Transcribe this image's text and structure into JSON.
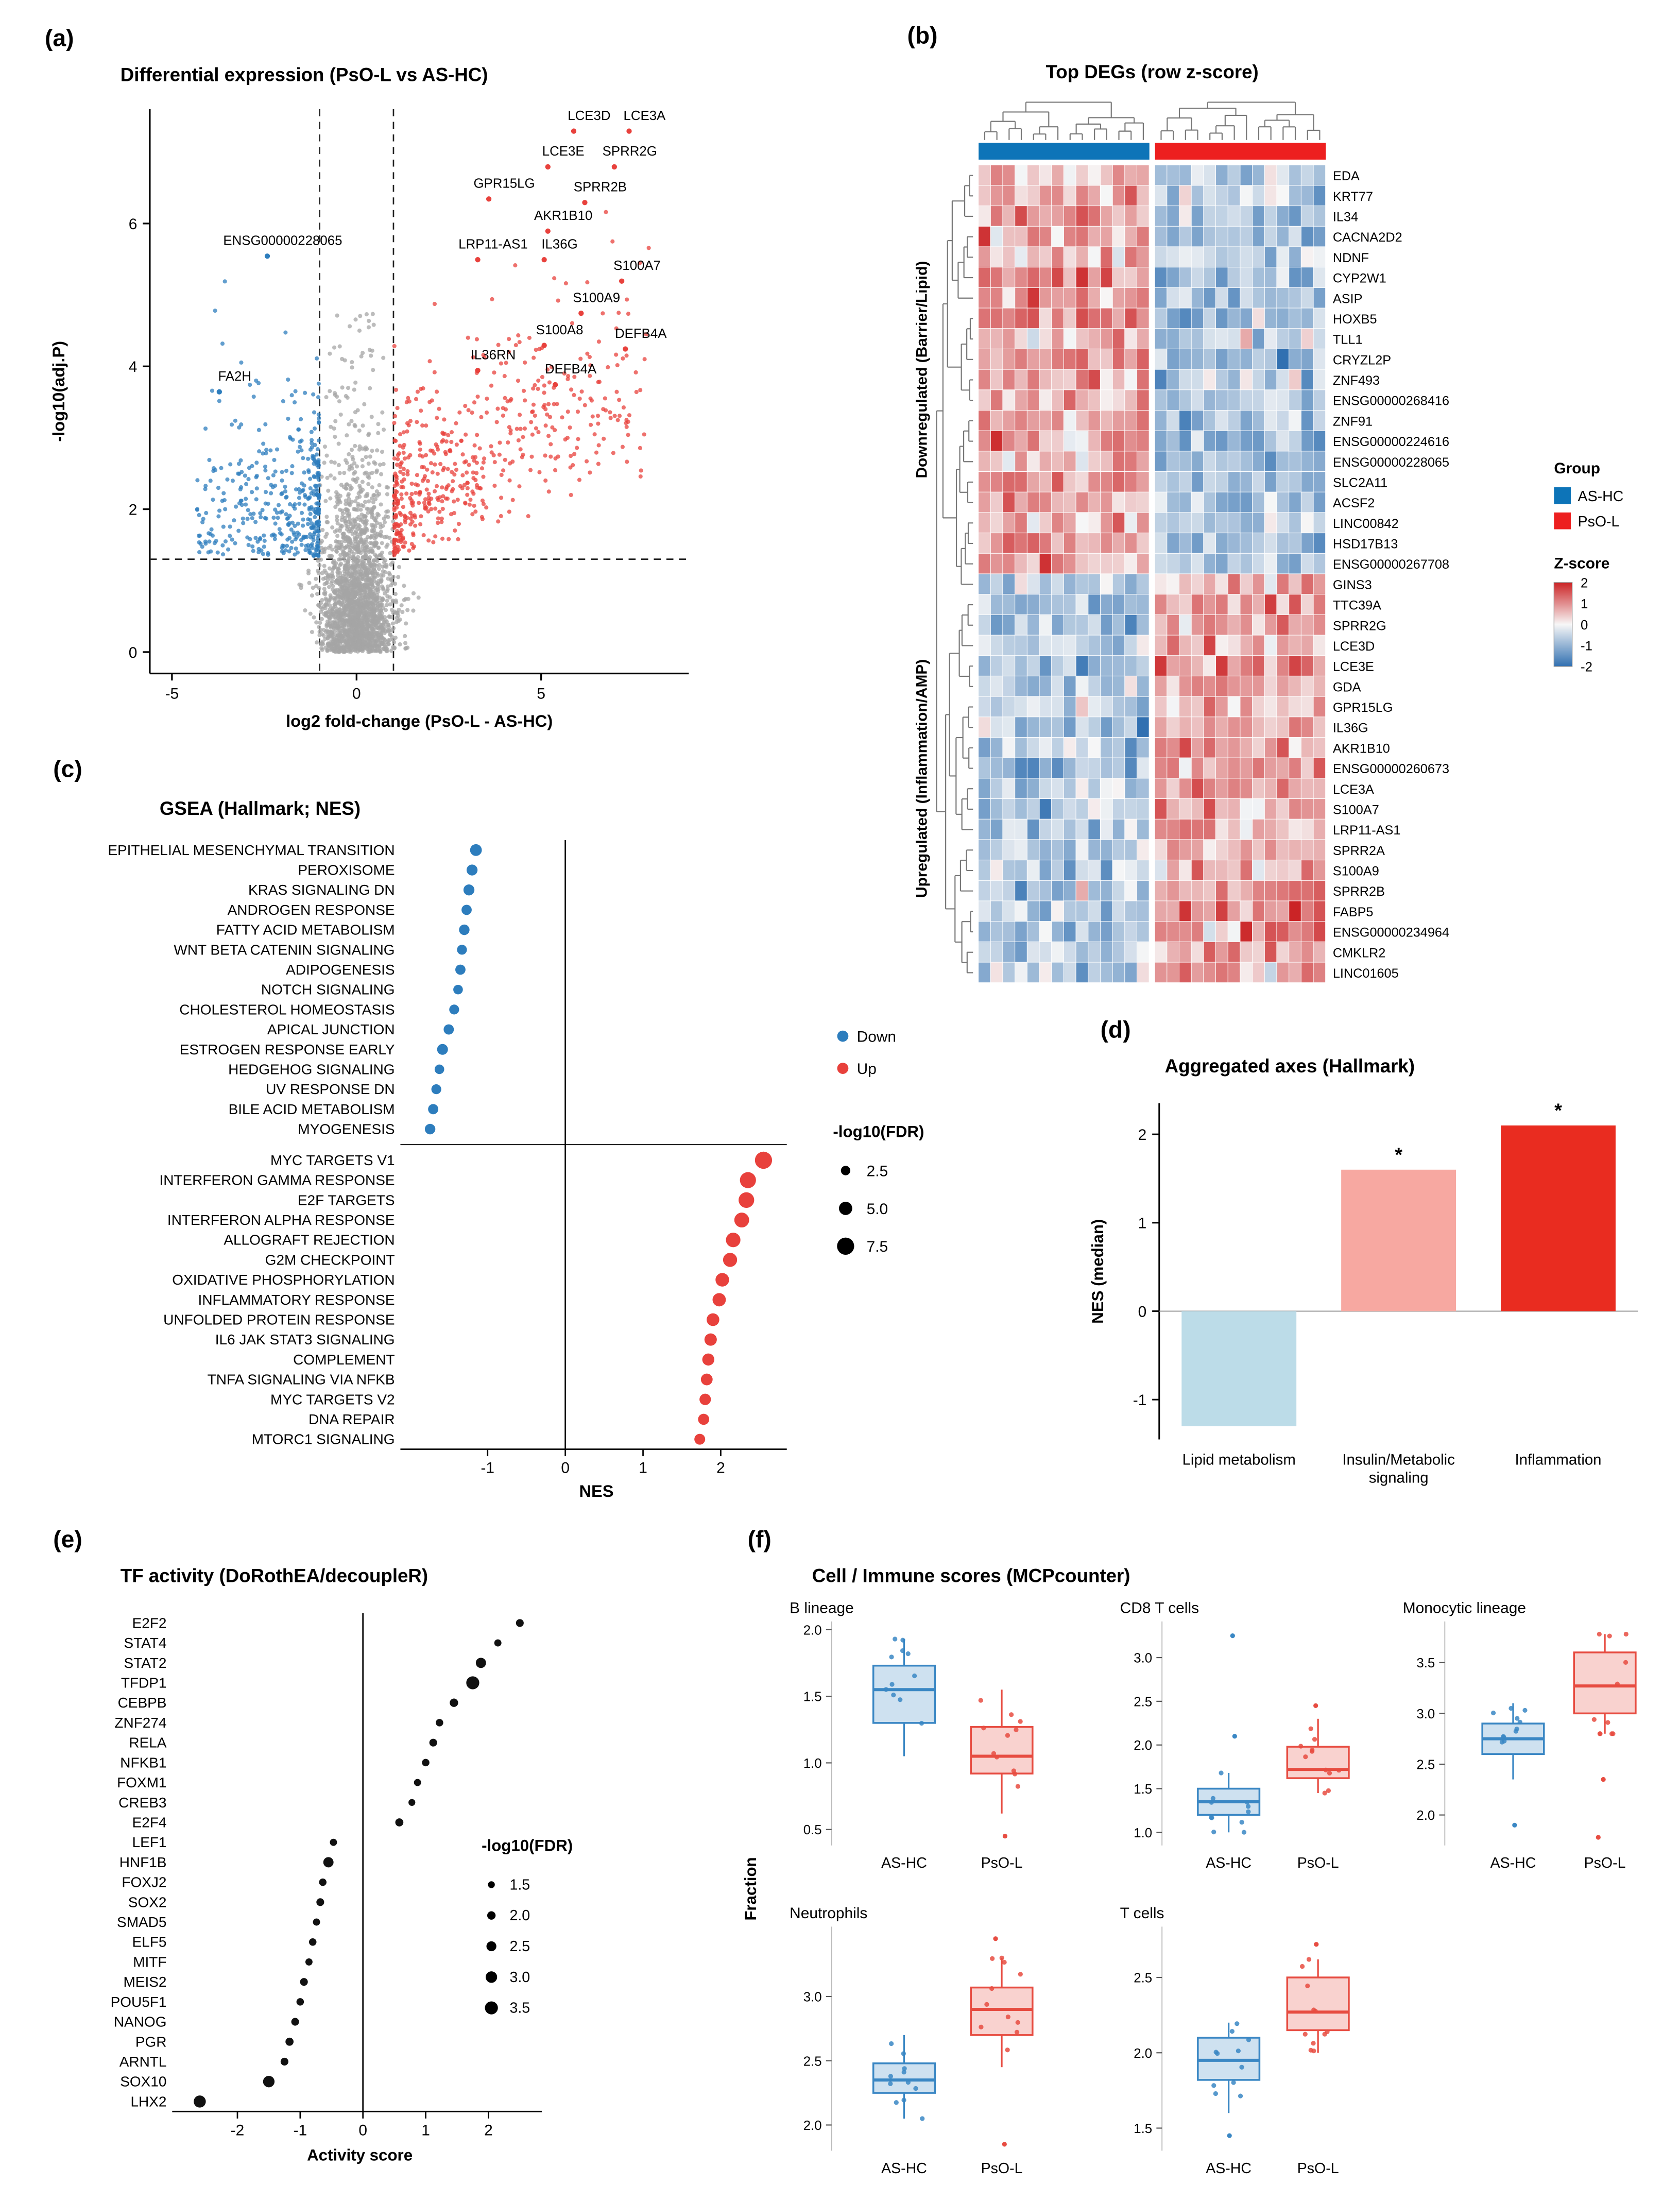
{
  "panels": {
    "a": {
      "tag": "(a)",
      "title": "Differential expression (PsO-L vs AS-HC)"
    },
    "b": {
      "tag": "(b)",
      "title": "Top DEGs (row z-score)"
    },
    "c": {
      "tag": "(c)",
      "title": "GSEA (Hallmark; NES)"
    },
    "d": {
      "tag": "(d)",
      "title": "Aggregated axes (Hallmark)"
    },
    "e": {
      "tag": "(e)",
      "title": "TF activity (DoRothEA/decoupleR)"
    },
    "f": {
      "tag": "(f)",
      "title": "Cell / Immune scores (MCPcounter)"
    }
  },
  "chart_data": [
    {
      "id": "volcano",
      "type": "scatter",
      "title": "Differential expression (PsO-L vs AS-HC)",
      "xlabel": "log2 fold-change (PsO-L - AS-HC)",
      "ylabel": "-log10(adj.P)",
      "xlim": [
        -5.6,
        9.0
      ],
      "ylim": [
        -0.3,
        7.6
      ],
      "xticks": [
        -5,
        0,
        5
      ],
      "yticks": [
        0,
        2,
        4,
        6
      ],
      "thresholds": {
        "x": [
          -1,
          1
        ],
        "y": 1.3
      },
      "colors": {
        "up": "#e8413c",
        "down": "#2d7dbd",
        "ns": "#a5a5a5"
      },
      "labels": [
        {
          "gene": "LCE3D",
          "x": 6.3,
          "y": 7.45,
          "group": "up"
        },
        {
          "gene": "LCE3A",
          "x": 7.8,
          "y": 7.45,
          "group": "up"
        },
        {
          "gene": "LCE3E",
          "x": 5.6,
          "y": 6.95,
          "group": "up"
        },
        {
          "gene": "SPRR2G",
          "x": 7.4,
          "y": 6.95,
          "group": "up"
        },
        {
          "gene": "GPR15LG",
          "x": 4.0,
          "y": 6.5,
          "group": "up"
        },
        {
          "gene": "SPRR2B",
          "x": 6.6,
          "y": 6.45,
          "group": "up"
        },
        {
          "gene": "AKR1B10",
          "x": 5.6,
          "y": 6.05,
          "group": "up"
        },
        {
          "gene": "LRP11-AS1",
          "x": 3.7,
          "y": 5.65,
          "group": "up"
        },
        {
          "gene": "IL36G",
          "x": 5.5,
          "y": 5.65,
          "group": "up"
        },
        {
          "gene": "S100A7",
          "x": 7.6,
          "y": 5.35,
          "group": "up"
        },
        {
          "gene": "S100A9",
          "x": 6.5,
          "y": 4.9,
          "group": "up"
        },
        {
          "gene": "S100A8",
          "x": 5.5,
          "y": 4.45,
          "group": "up"
        },
        {
          "gene": "DEFB4A",
          "x": 7.7,
          "y": 4.4,
          "group": "up"
        },
        {
          "gene": "IL36RN",
          "x": 3.7,
          "y": 4.1,
          "group": "up"
        },
        {
          "gene": "DEFB4A",
          "x": 5.8,
          "y": 3.9,
          "group": "up"
        },
        {
          "gene": "ENSG00000228065",
          "x": -2.0,
          "y": 5.7,
          "group": "down"
        },
        {
          "gene": "FA2H",
          "x": -3.3,
          "y": 3.8,
          "group": "down"
        }
      ]
    },
    {
      "id": "heatmap",
      "type": "heatmap",
      "title": "Top DEGs (row z-score)",
      "row_groups": [
        {
          "label": "Downregulated (Barrier/Lipid)",
          "genes": [
            "EDA",
            "KRT77",
            "IL34",
            "CACNA2D2",
            "NDNF",
            "CYP2W1",
            "ASIP",
            "HOXB5",
            "TLL1",
            "CRYZL2P",
            "ZNF493",
            "ENSG00000268416",
            "ZNF91",
            "ENSG00000224616",
            "ENSG00000228065",
            "SLC2A11",
            "ACSF2",
            "LINC00842",
            "HSD17B13",
            "ENSG00000267708"
          ]
        },
        {
          "label": "Upregulated (Inflammation/AMP)",
          "genes": [
            "GINS3",
            "TTC39A",
            "SPRR2G",
            "LCE3D",
            "LCE3E",
            "GDA",
            "GPR15LG",
            "IL36G",
            "AKR1B10",
            "ENSG00000260673",
            "LCE3A",
            "S100A7",
            "LRP11-AS1",
            "SPRR2A",
            "S100A9",
            "SPRR2B",
            "FABP5",
            "ENSG00000234964",
            "CMKLR2",
            "LINC01605"
          ]
        }
      ],
      "col_groups": [
        {
          "label": "AS-HC",
          "color": "#0d74b8",
          "n": 14
        },
        {
          "label": "PsO-L",
          "color": "#ed1f1f",
          "n": 14
        }
      ],
      "legend": {
        "group_title": "Group",
        "zscore_title": "Z-score",
        "zticks": [
          2,
          1,
          0,
          -1,
          -2
        ]
      },
      "colorscale": {
        "positive": "#cb2426",
        "mid": "#f7f7f7",
        "negative": "#3170b1"
      }
    },
    {
      "id": "gsea",
      "type": "scatter",
      "title": "GSEA (Hallmark; NES)",
      "xlabel": "NES",
      "xlim": [
        -2.05,
        2.85
      ],
      "xticks": [
        -1,
        0,
        1,
        2
      ],
      "colors": {
        "down": "#2d7dbd",
        "up": "#e8413c"
      },
      "legend": {
        "down_label": "Down",
        "up_label": "Up",
        "size_title": "-log10(FDR)",
        "size_ticks": [
          2.5,
          5.0,
          7.5
        ]
      },
      "down": [
        {
          "pathway": "EPITHELIAL MESENCHYMAL TRANSITION",
          "nes": -1.15,
          "fdr": 4.0
        },
        {
          "pathway": "PEROXISOME",
          "nes": -1.2,
          "fdr": 3.5
        },
        {
          "pathway": "KRAS SIGNALING DN",
          "nes": -1.24,
          "fdr": 3.5
        },
        {
          "pathway": "ANDROGEN RESPONSE",
          "nes": -1.27,
          "fdr": 3.0
        },
        {
          "pathway": "FATTY ACID METABOLISM",
          "nes": -1.3,
          "fdr": 3.2
        },
        {
          "pathway": "WNT BETA CATENIN SIGNALING",
          "nes": -1.33,
          "fdr": 2.8
        },
        {
          "pathway": "ADIPOGENESIS",
          "nes": -1.35,
          "fdr": 3.0
        },
        {
          "pathway": "NOTCH SIGNALING",
          "nes": -1.38,
          "fdr": 2.6
        },
        {
          "pathway": "CHOLESTEROL HOMEOSTASIS",
          "nes": -1.43,
          "fdr": 2.8
        },
        {
          "pathway": "APICAL JUNCTION",
          "nes": -1.5,
          "fdr": 3.0
        },
        {
          "pathway": "ESTROGEN RESPONSE EARLY",
          "nes": -1.58,
          "fdr": 3.4
        },
        {
          "pathway": "HEDGEHOG SIGNALING",
          "nes": -1.62,
          "fdr": 2.6
        },
        {
          "pathway": "UV RESPONSE DN",
          "nes": -1.66,
          "fdr": 2.8
        },
        {
          "pathway": "BILE ACID METABOLISM",
          "nes": -1.7,
          "fdr": 3.0
        },
        {
          "pathway": "MYOGENESIS",
          "nes": -1.74,
          "fdr": 3.2
        }
      ],
      "up": [
        {
          "pathway": "MYC TARGETS V1",
          "nes": 2.55,
          "fdr": 7.5
        },
        {
          "pathway": "INTERFERON GAMMA RESPONSE",
          "nes": 2.35,
          "fdr": 6.8
        },
        {
          "pathway": "E2F TARGETS",
          "nes": 2.33,
          "fdr": 6.5
        },
        {
          "pathway": "INTERFERON ALPHA RESPONSE",
          "nes": 2.27,
          "fdr": 6.0
        },
        {
          "pathway": "ALLOGRAFT REJECTION",
          "nes": 2.16,
          "fdr": 5.8
        },
        {
          "pathway": "G2M CHECKPOINT",
          "nes": 2.12,
          "fdr": 5.5
        },
        {
          "pathway": "OXIDATIVE PHOSPHORYLATION",
          "nes": 2.02,
          "fdr": 5.2
        },
        {
          "pathway": "INFLAMMATORY RESPONSE",
          "nes": 1.98,
          "fdr": 5.0
        },
        {
          "pathway": "UNFOLDED PROTEIN RESPONSE",
          "nes": 1.9,
          "fdr": 4.6
        },
        {
          "pathway": "IL6 JAK STAT3 SIGNALING",
          "nes": 1.87,
          "fdr": 4.4
        },
        {
          "pathway": "COMPLEMENT",
          "nes": 1.84,
          "fdr": 4.2
        },
        {
          "pathway": "TNFA SIGNALING VIA NFKB",
          "nes": 1.82,
          "fdr": 4.0
        },
        {
          "pathway": "MYC TARGETS V2",
          "nes": 1.8,
          "fdr": 3.8
        },
        {
          "pathway": "DNA REPAIR",
          "nes": 1.78,
          "fdr": 3.6
        },
        {
          "pathway": "MTORC1 SIGNALING",
          "nes": 1.73,
          "fdr": 3.4
        }
      ]
    },
    {
      "id": "axes_bars",
      "type": "bar",
      "title": "Aggregated axes (Hallmark)",
      "ylabel": "NES (median)",
      "ylim": [
        -1.45,
        2.35
      ],
      "yticks": [
        -1,
        0,
        1,
        2
      ],
      "categories": [
        "Lipid metabolism",
        "Insulin/Metabolic signaling",
        "Inflammation"
      ],
      "category_lines": [
        [
          "Lipid metabolism"
        ],
        [
          "Insulin/Metabolic",
          "signaling"
        ],
        [
          "Inflammation"
        ]
      ],
      "values": [
        -1.3,
        1.6,
        2.1
      ],
      "colors": [
        "#bcdce8",
        "#f7a8a1",
        "#e92c20"
      ],
      "significance": [
        "",
        "*",
        "*"
      ]
    },
    {
      "id": "tf_activity",
      "type": "scatter",
      "title": "TF activity (DoRothEA/decoupleR)",
      "xlabel": "Activity score",
      "xlim": [
        -2.95,
        2.85
      ],
      "xticks": [
        -2,
        -1,
        0,
        1,
        2
      ],
      "dot_color": "#111111",
      "legend": {
        "size_title": "-log10(FDR)",
        "size_ticks": [
          1.5,
          2.0,
          2.5,
          3.0,
          3.5
        ]
      },
      "tfs": [
        {
          "tf": "E2F2",
          "score": 2.5,
          "fdr": 1.8
        },
        {
          "tf": "STAT4",
          "score": 2.15,
          "fdr": 1.6
        },
        {
          "tf": "STAT2",
          "score": 1.88,
          "fdr": 2.6
        },
        {
          "tf": "TFDP1",
          "score": 1.75,
          "fdr": 3.5
        },
        {
          "tf": "CEBPB",
          "score": 1.45,
          "fdr": 2.0
        },
        {
          "tf": "ZNF274",
          "score": 1.22,
          "fdr": 1.7
        },
        {
          "tf": "RELA",
          "score": 1.12,
          "fdr": 1.8
        },
        {
          "tf": "NFKB1",
          "score": 1.0,
          "fdr": 1.7
        },
        {
          "tf": "FOXM1",
          "score": 0.87,
          "fdr": 1.6
        },
        {
          "tf": "CREB3",
          "score": 0.78,
          "fdr": 1.5
        },
        {
          "tf": "E2F4",
          "score": 0.58,
          "fdr": 1.9
        },
        {
          "tf": "LEF1",
          "score": -0.47,
          "fdr": 1.6
        },
        {
          "tf": "HNF1B",
          "score": -0.55,
          "fdr": 2.6
        },
        {
          "tf": "FOXJ2",
          "score": -0.64,
          "fdr": 1.7
        },
        {
          "tf": "SOX2",
          "score": -0.68,
          "fdr": 1.8
        },
        {
          "tf": "SMAD5",
          "score": -0.74,
          "fdr": 1.6
        },
        {
          "tf": "ELF5",
          "score": -0.8,
          "fdr": 1.7
        },
        {
          "tf": "MITF",
          "score": -0.86,
          "fdr": 1.6
        },
        {
          "tf": "MEIS2",
          "score": -0.94,
          "fdr": 1.8
        },
        {
          "tf": "POU5F1",
          "score": -1.0,
          "fdr": 1.7
        },
        {
          "tf": "NANOG",
          "score": -1.08,
          "fdr": 1.8
        },
        {
          "tf": "PGR",
          "score": -1.17,
          "fdr": 1.9
        },
        {
          "tf": "ARNTL",
          "score": -1.25,
          "fdr": 1.8
        },
        {
          "tf": "SOX10",
          "score": -1.5,
          "fdr": 3.0
        },
        {
          "tf": "LHX2",
          "score": -2.6,
          "fdr": 3.2
        }
      ]
    },
    {
      "id": "immune_boxplots",
      "type": "boxplot-grid",
      "title": "Cell / Immune scores (MCPcounter)",
      "ylabel": "Fraction",
      "group_labels": [
        "AS-HC",
        "PsO-L"
      ],
      "group_colors": [
        "#3a87c4",
        "#e74c41"
      ],
      "panels": [
        {
          "name": "B lineage",
          "ylim": [
            0.38,
            2.02
          ],
          "yticks": [
            0.5,
            1.0,
            1.5,
            2.0
          ],
          "boxes": [
            {
              "whisker_low": 1.05,
              "q1": 1.3,
              "median": 1.55,
              "q3": 1.73,
              "whisker_high": 1.93
            },
            {
              "whisker_low": 0.62,
              "q1": 0.92,
              "median": 1.05,
              "q3": 1.27,
              "whisker_high": 1.55
            }
          ],
          "outliers": [
            [],
            [
              0.45
            ]
          ]
        },
        {
          "name": "CD8 T cells",
          "ylim": [
            0.85,
            3.35
          ],
          "yticks": [
            1.0,
            1.5,
            2.0,
            2.5,
            3.0
          ],
          "boxes": [
            {
              "whisker_low": 1.0,
              "q1": 1.2,
              "median": 1.35,
              "q3": 1.5,
              "whisker_high": 1.68
            },
            {
              "whisker_low": 1.45,
              "q1": 1.62,
              "median": 1.72,
              "q3": 1.98,
              "whisker_high": 2.3
            }
          ],
          "outliers": [
            [
              3.25,
              2.1
            ],
            [
              2.45
            ]
          ]
        },
        {
          "name": "Monocytic lineage",
          "ylim": [
            1.7,
            3.85
          ],
          "yticks": [
            2.0,
            2.5,
            3.0,
            3.5
          ],
          "boxes": [
            {
              "whisker_low": 2.35,
              "q1": 2.6,
              "median": 2.75,
              "q3": 2.9,
              "whisker_high": 3.1
            },
            {
              "whisker_low": 2.8,
              "q1": 3.0,
              "median": 3.27,
              "q3": 3.6,
              "whisker_high": 3.78
            }
          ],
          "outliers": [
            [
              1.9
            ],
            [
              2.35,
              1.78
            ]
          ]
        },
        {
          "name": "Neutrophils",
          "ylim": [
            1.8,
            3.5
          ],
          "yticks": [
            2.0,
            2.5,
            3.0
          ],
          "boxes": [
            {
              "whisker_low": 2.05,
              "q1": 2.25,
              "median": 2.35,
              "q3": 2.48,
              "whisker_high": 2.7
            },
            {
              "whisker_low": 2.45,
              "q1": 2.7,
              "median": 2.9,
              "q3": 3.07,
              "whisker_high": 3.3
            }
          ],
          "outliers": [
            [],
            [
              1.85,
              3.45
            ]
          ]
        },
        {
          "name": "T cells",
          "ylim": [
            1.35,
            2.8
          ],
          "yticks": [
            1.5,
            2.0,
            2.5
          ],
          "boxes": [
            {
              "whisker_low": 1.6,
              "q1": 1.82,
              "median": 1.95,
              "q3": 2.1,
              "whisker_high": 2.2
            },
            {
              "whisker_low": 2.0,
              "q1": 2.15,
              "median": 2.27,
              "q3": 2.5,
              "whisker_high": 2.62
            }
          ],
          "outliers": [
            [
              1.45
            ],
            [
              2.72
            ]
          ]
        }
      ]
    }
  ]
}
